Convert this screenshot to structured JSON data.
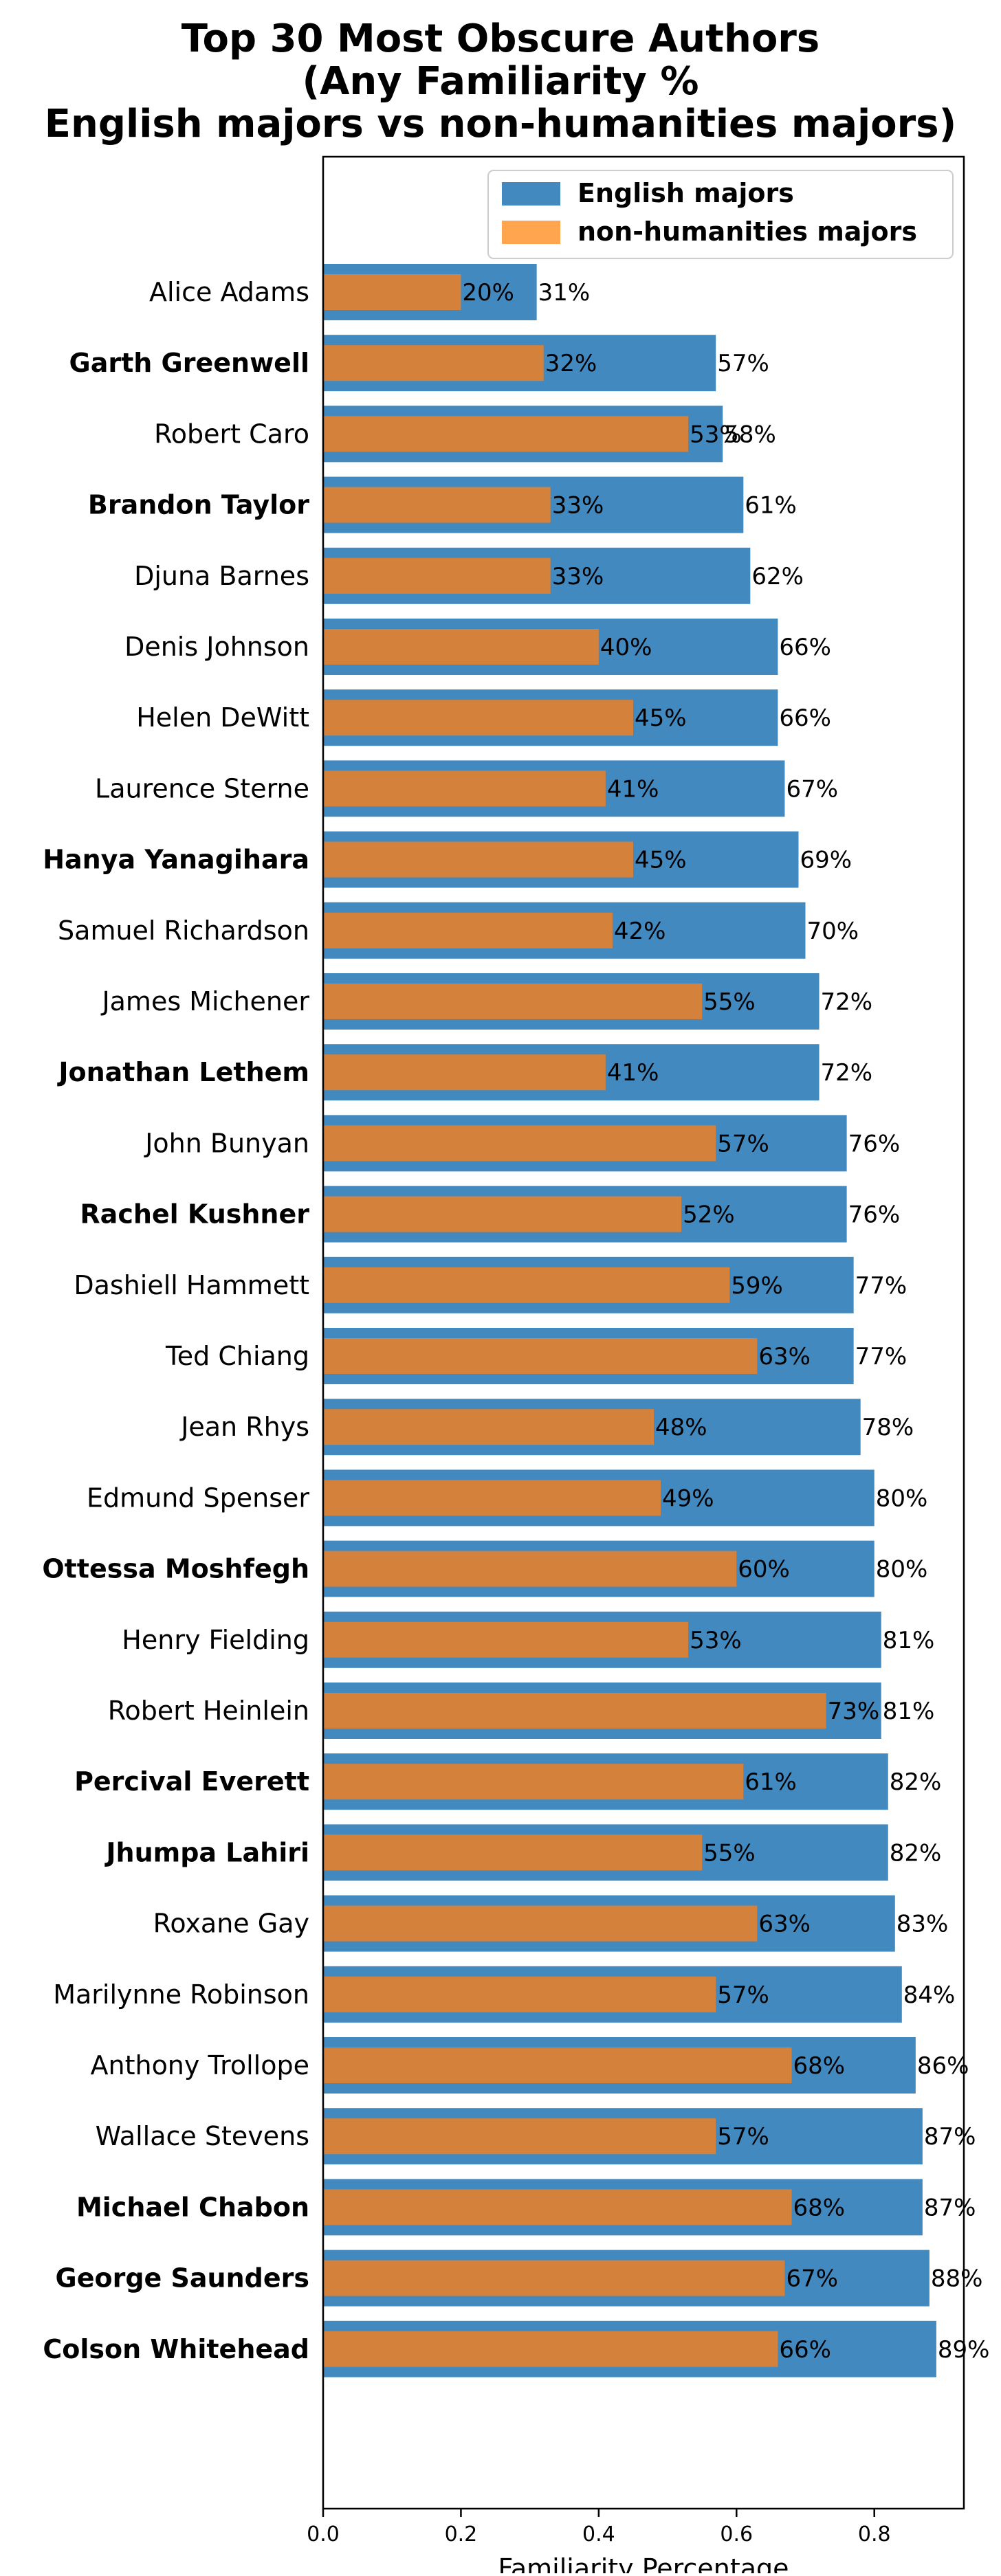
{
  "chart_data": {
    "type": "bar",
    "orientation": "horizontal",
    "title_lines": [
      "Top 30 Most Obscure Authors",
      "(Any Familiarity %",
      "English majors vs non-humanities majors)"
    ],
    "xlabel": "Familiarity Percentage",
    "ylabel": "",
    "xlim": [
      0,
      0.93
    ],
    "xticks": [
      "0.0",
      "0.2",
      "0.4",
      "0.6",
      "0.8"
    ],
    "grid": false,
    "legend_position": "top-right",
    "categories": [
      "Alice Adams",
      "Garth Greenwell",
      "Robert Caro",
      "Brandon Taylor",
      "Djuna Barnes",
      "Denis Johnson",
      "Helen DeWitt",
      "Laurence Sterne",
      "Hanya Yanagihara",
      "Samuel Richardson",
      "James Michener",
      "Jonathan Lethem",
      "John Bunyan",
      "Rachel Kushner",
      "Dashiell Hammett",
      "Ted Chiang",
      "Jean Rhys",
      "Edmund Spenser",
      "Ottessa Moshfegh",
      "Henry Fielding",
      "Robert Heinlein",
      "Percival Everett",
      "Jhumpa Lahiri",
      "Roxane Gay",
      "Marilynne Robinson",
      "Anthony Trollope",
      "Wallace Stevens",
      "Michael Chabon",
      "George Saunders",
      "Colson Whitehead"
    ],
    "bold_categories": [
      "Garth Greenwell",
      "Brandon Taylor",
      "Hanya Yanagihara",
      "Jonathan Lethem",
      "Rachel Kushner",
      "Ottessa Moshfegh",
      "Percival Everett",
      "Jhumpa Lahiri",
      "Michael Chabon",
      "George Saunders",
      "Colson Whitehead"
    ],
    "series": [
      {
        "name": "English majors",
        "color": "#4289c0",
        "values": [
          0.31,
          0.57,
          0.58,
          0.61,
          0.62,
          0.66,
          0.66,
          0.67,
          0.69,
          0.7,
          0.72,
          0.72,
          0.76,
          0.76,
          0.77,
          0.77,
          0.78,
          0.8,
          0.8,
          0.81,
          0.81,
          0.82,
          0.82,
          0.83,
          0.84,
          0.86,
          0.87,
          0.87,
          0.88,
          0.89
        ],
        "labels": [
          "31%",
          "57%",
          "58%",
          "61%",
          "62%",
          "66%",
          "66%",
          "67%",
          "69%",
          "70%",
          "72%",
          "72%",
          "76%",
          "76%",
          "77%",
          "77%",
          "78%",
          "80%",
          "80%",
          "81%",
          "81%",
          "82%",
          "82%",
          "83%",
          "84%",
          "86%",
          "87%",
          "87%",
          "88%",
          "89%"
        ]
      },
      {
        "name": "non-humanities majors",
        "color": "#d4823b",
        "legend_color": "#ffa44f",
        "values": [
          0.2,
          0.32,
          0.53,
          0.33,
          0.33,
          0.4,
          0.45,
          0.41,
          0.45,
          0.42,
          0.55,
          0.41,
          0.57,
          0.52,
          0.59,
          0.63,
          0.48,
          0.49,
          0.6,
          0.53,
          0.73,
          0.61,
          0.55,
          0.63,
          0.57,
          0.68,
          0.57,
          0.68,
          0.67,
          0.66
        ],
        "labels": [
          "20%",
          "32%",
          "53%",
          "33%",
          "33%",
          "40%",
          "45%",
          "41%",
          "45%",
          "42%",
          "55%",
          "41%",
          "57%",
          "52%",
          "59%",
          "63%",
          "48%",
          "49%",
          "60%",
          "53%",
          "73%",
          "61%",
          "55%",
          "63%",
          "57%",
          "68%",
          "57%",
          "68%",
          "67%",
          "66%"
        ]
      }
    ]
  }
}
